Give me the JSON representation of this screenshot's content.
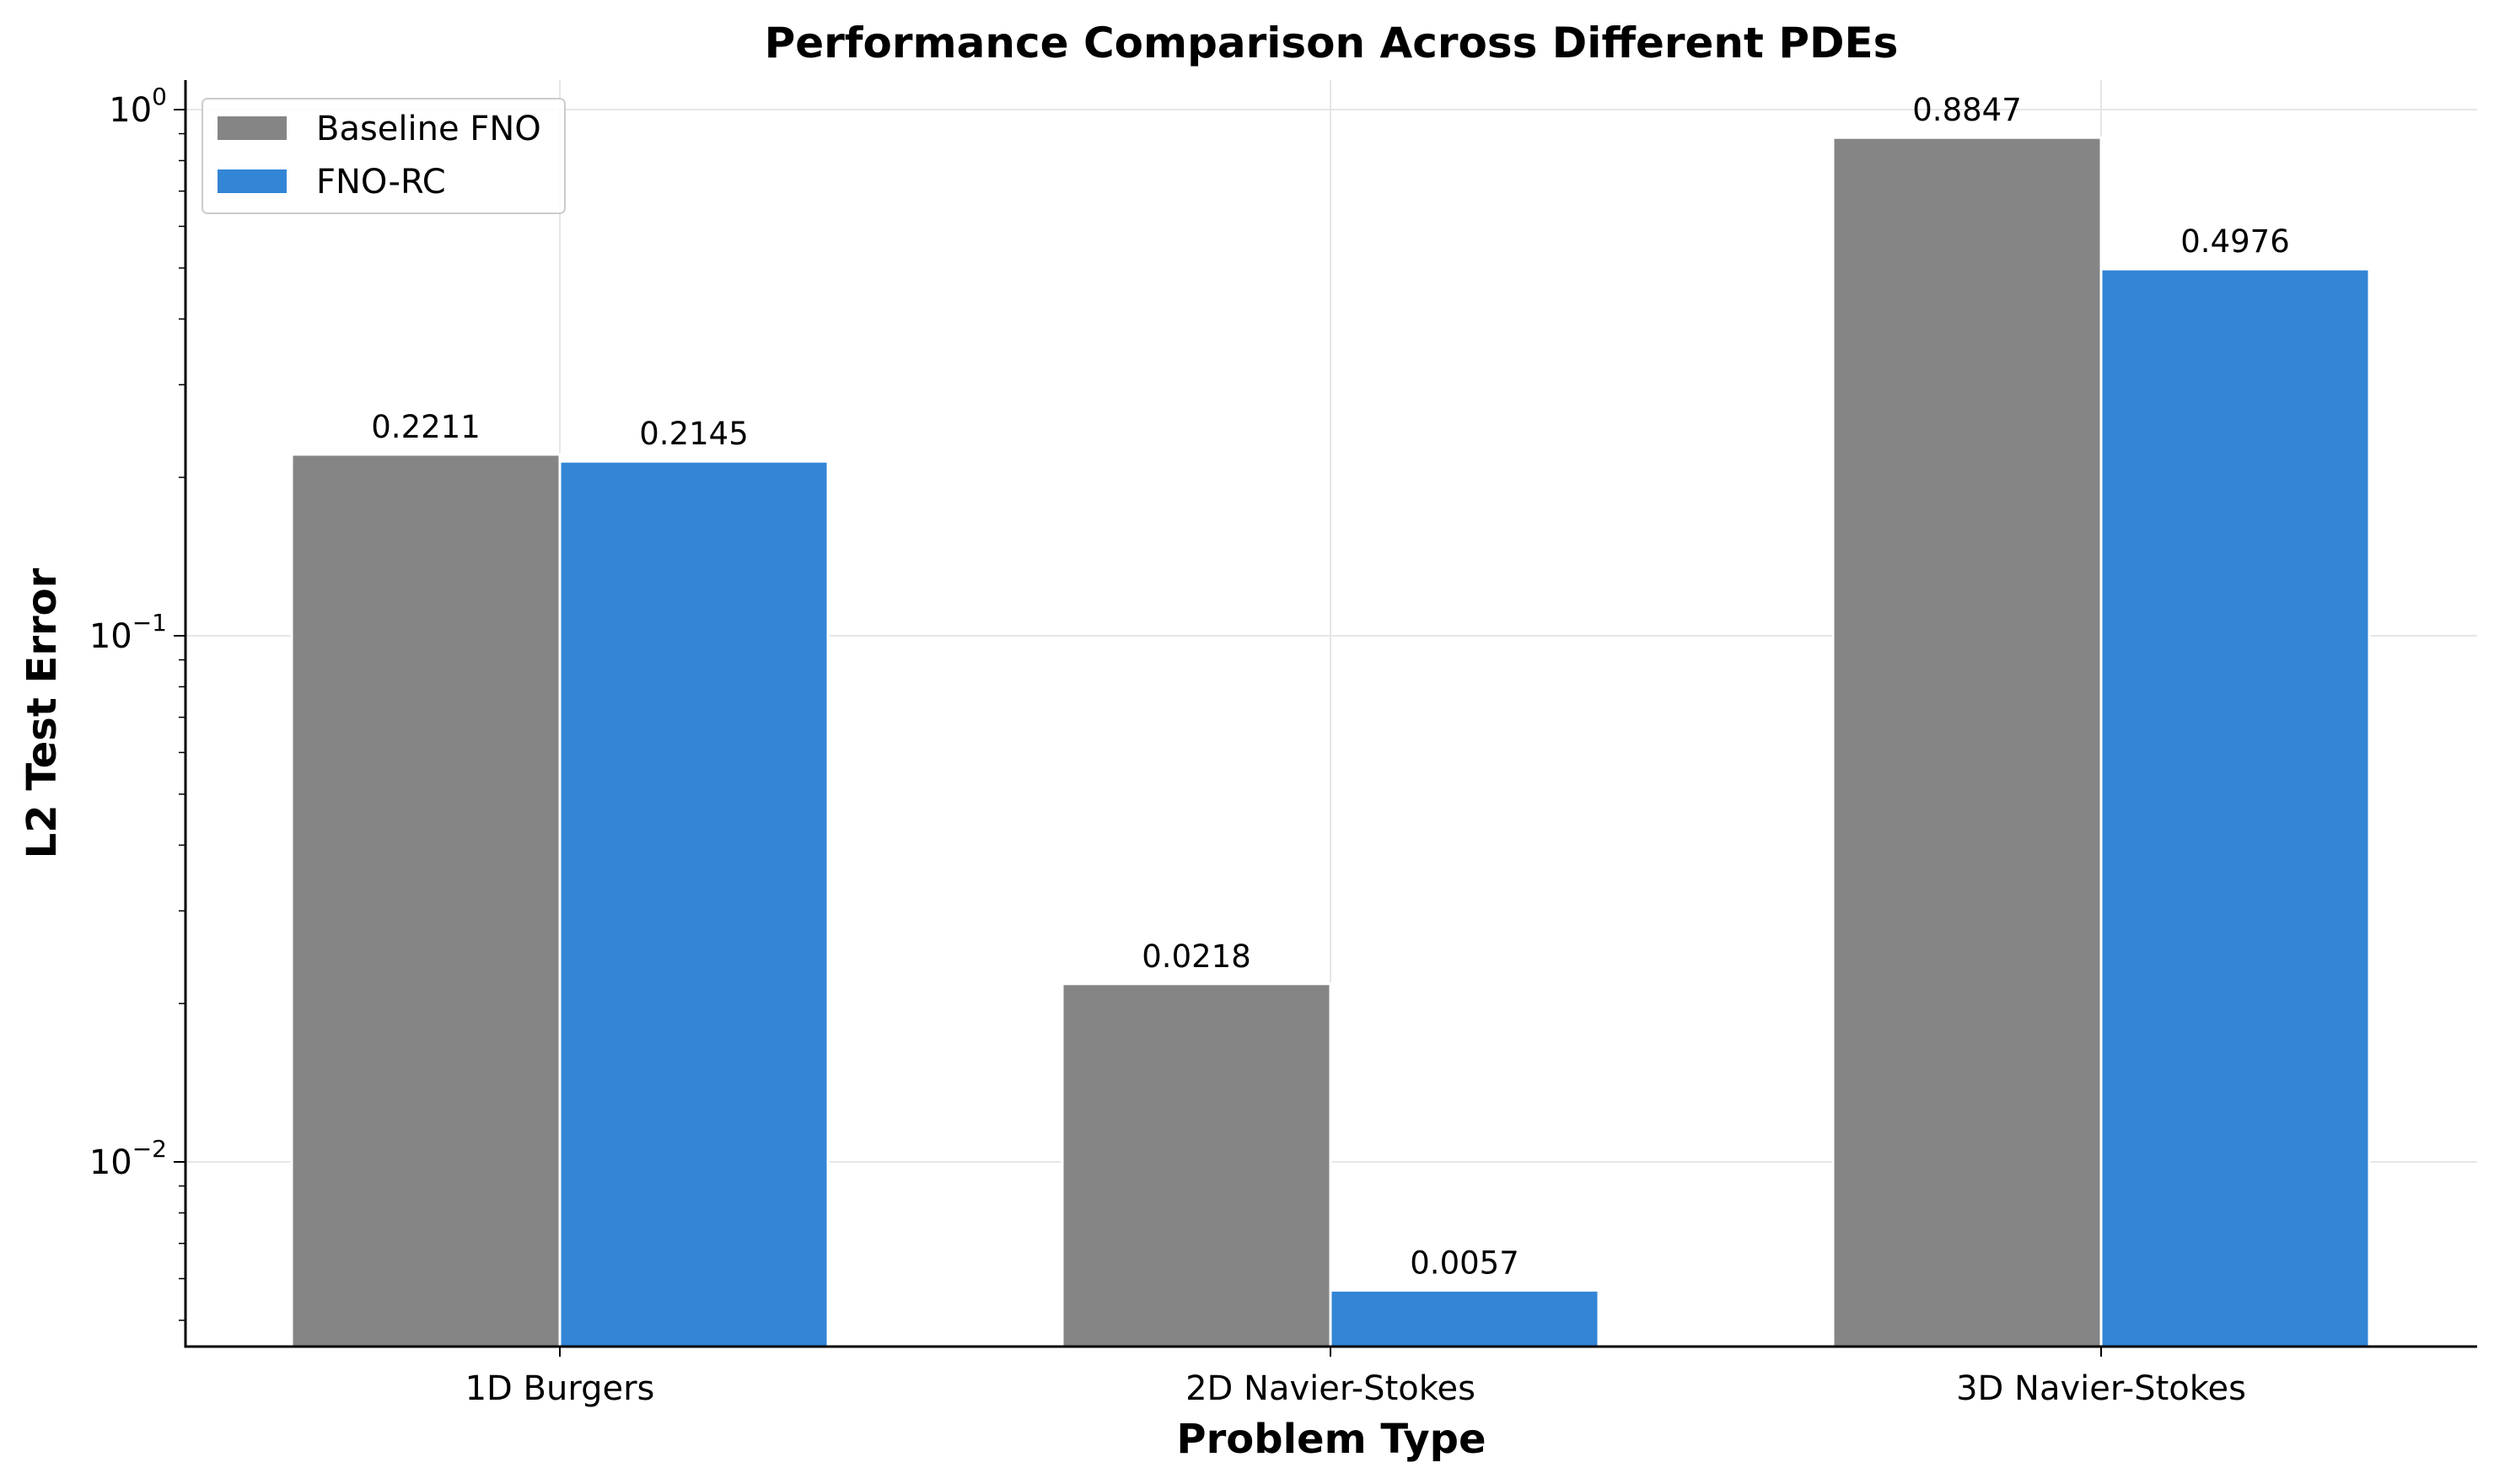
{
  "chart_data": {
    "type": "bar",
    "title": "Performance Comparison Across Different PDEs",
    "xlabel": "Problem Type",
    "ylabel": "L2 Test Error",
    "yscale": "log",
    "ylim": [
      0.0046,
      1.0
    ],
    "y_ticks": [
      {
        "value": 1.0,
        "base": "10",
        "exp": "0"
      },
      {
        "value": 0.1,
        "base": "10",
        "exp": "−1"
      },
      {
        "value": 0.01,
        "base": "10",
        "exp": "−2"
      }
    ],
    "categories": [
      "1D Burgers",
      "2D Navier-Stokes",
      "3D Navier-Stokes"
    ],
    "series": [
      {
        "name": "Baseline FNO",
        "color": "#858585",
        "values": [
          0.2211,
          0.0218,
          0.8847
        ],
        "labels": [
          "0.2211",
          "0.0218",
          "0.8847"
        ]
      },
      {
        "name": "FNO-RC",
        "color": "#3385d6",
        "values": [
          0.2145,
          0.0057,
          0.4976
        ],
        "labels": [
          "0.2145",
          "0.0057",
          "0.4976"
        ]
      }
    ],
    "grid": true,
    "legend_position": "top-left"
  }
}
